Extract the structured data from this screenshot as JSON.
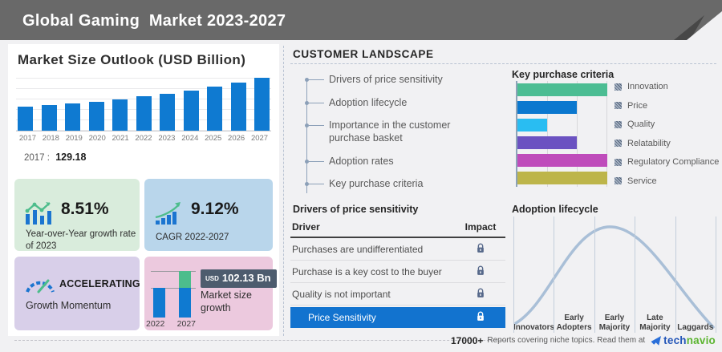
{
  "header": {
    "title": "Global Gaming  Market 2023-2027"
  },
  "left_panel": {
    "chart_title": "Market Size Outlook (USD Billion)",
    "base_year_label": "2017 :",
    "base_year_value": "129.18",
    "stats": {
      "yoy": {
        "value": "8.51%",
        "label": "Year-over-Year growth rate of 2023"
      },
      "cagr": {
        "value": "9.12%",
        "label": "CAGR 2022-2027"
      },
      "momentum": {
        "value": "ACCELERATING",
        "label": "Growth Momentum"
      },
      "growth": {
        "currency": "USD",
        "amount": "102.13 Bn",
        "label": "Market size growth"
      }
    }
  },
  "customer_landscape": {
    "title": "CUSTOMER  LANDSCAPE",
    "items": [
      "Drivers of price sensitivity",
      "Adoption lifecycle",
      "Importance in the customer purchase basket",
      "Adoption rates",
      "Key purchase criteria"
    ]
  },
  "price_sensitivity": {
    "title": "Drivers of price sensitivity",
    "columns": {
      "driver": "Driver",
      "impact": "Impact"
    },
    "rows": [
      {
        "driver": "Purchases are undifferentiated",
        "impact": "lock",
        "highlight": false
      },
      {
        "driver": "Purchase is a key cost to the buyer",
        "impact": "lock",
        "highlight": false
      },
      {
        "driver": "Quality is not important",
        "impact": "lock",
        "highlight": false
      },
      {
        "driver": "Price Sensitivity",
        "impact": "lock",
        "highlight": true
      }
    ]
  },
  "key_purchase_criteria_title": "Key purchase criteria",
  "adoption_lifecycle_title": "Adoption lifecycle",
  "footer": {
    "count": "17000+",
    "text": "Reports covering niche topics. Read them at",
    "brand_tech": "tech",
    "brand_navio": "navio"
  },
  "colors": {
    "header_bg": "#696969",
    "market_bar": "#0f7ad1",
    "highlight_row": "#1273cf",
    "lock": "#56688a",
    "curve": "#a9bfd7",
    "badge_bg": "#4d5c6e",
    "box_green": "#d9ecdc",
    "box_blue": "#b9d6eb",
    "box_purple": "#d8cfe9",
    "box_pink": "#ecc9de"
  },
  "chart_data": [
    {
      "id": "market_size_outlook",
      "type": "bar",
      "title": "Market Size Outlook (USD Billion)",
      "categories": [
        "2017",
        "2018",
        "2019",
        "2020",
        "2021",
        "2022",
        "2023",
        "2024",
        "2025",
        "2026",
        "2027"
      ],
      "values": [
        129.18,
        138,
        147.5,
        158.5,
        171,
        186.36,
        202.22,
        219.7,
        239.3,
        261.9,
        288.49
      ],
      "values_note": "only 2017 value (129.18) labeled on screen; others estimated from bar heights",
      "ylabel": "USD Billion",
      "ylim": [
        0,
        300
      ],
      "grid": "horizontal",
      "bar_color": "#0f7ad1"
    },
    {
      "id": "key_purchase_criteria",
      "type": "bar",
      "orientation": "horizontal",
      "title": "Key purchase criteria",
      "categories": [
        "Innovation",
        "Price",
        "Quality",
        "Relatability",
        "Regulatory Compliance",
        "Service"
      ],
      "values": [
        100,
        66,
        33,
        66,
        100,
        100
      ],
      "values_note": "relative bar lengths estimated from gridlines, %",
      "colors": [
        "#4cbd93",
        "#0b78cf",
        "#29bdf2",
        "#6b52c1",
        "#bf4cbb",
        "#bdb54a"
      ],
      "legend_position": "right",
      "grid": "vertical"
    },
    {
      "id": "market_size_growth",
      "type": "bar",
      "title": "Market size growth",
      "categories": [
        "2022",
        "2027"
      ],
      "values": [
        186.36,
        288.49
      ],
      "values_note": "bars not labeled; growth between them labeled USD 102.13 Bn",
      "annotation": "USD 102.13 Bn",
      "growth_segment_color": "#4dbd8c",
      "bar_color": "#0f7ad1"
    },
    {
      "id": "adoption_lifecycle",
      "type": "line",
      "title": "Adoption lifecycle",
      "categories": [
        "Innovators",
        "Early Adopters",
        "Early Majority",
        "Late Majority",
        "Laggards"
      ],
      "values": [
        15,
        60,
        100,
        55,
        8
      ],
      "values_note": "unlabeled bell curve; relative heights estimated",
      "curve_color": "#a9bfd7",
      "grid": "vertical"
    }
  ]
}
